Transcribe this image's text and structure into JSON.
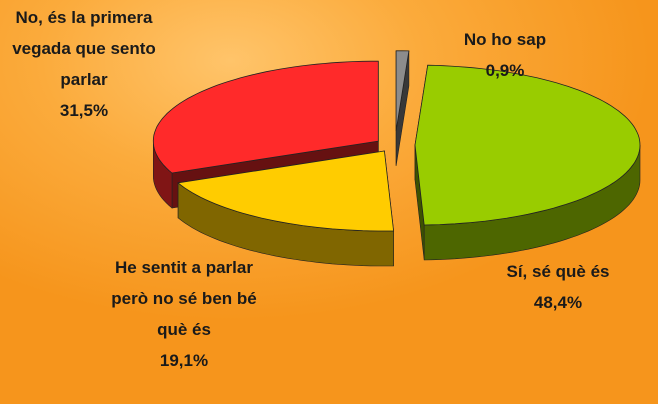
{
  "chart_data": {
    "type": "pie3d",
    "categories": [
      "No ho sap",
      "Sí, sé què és",
      "He sentit a parlar però no sé ben bé què és",
      "No, és la primera vegada que sento parlar"
    ],
    "values": [
      0.9,
      48.4,
      19.1,
      31.5
    ],
    "value_labels": [
      "0,9%",
      "48,4%",
      "19,1%",
      "31,5%"
    ],
    "colors": [
      "#8c8c8c",
      "#99cc00",
      "#ffcc00",
      "#ff2a2a"
    ]
  }
}
